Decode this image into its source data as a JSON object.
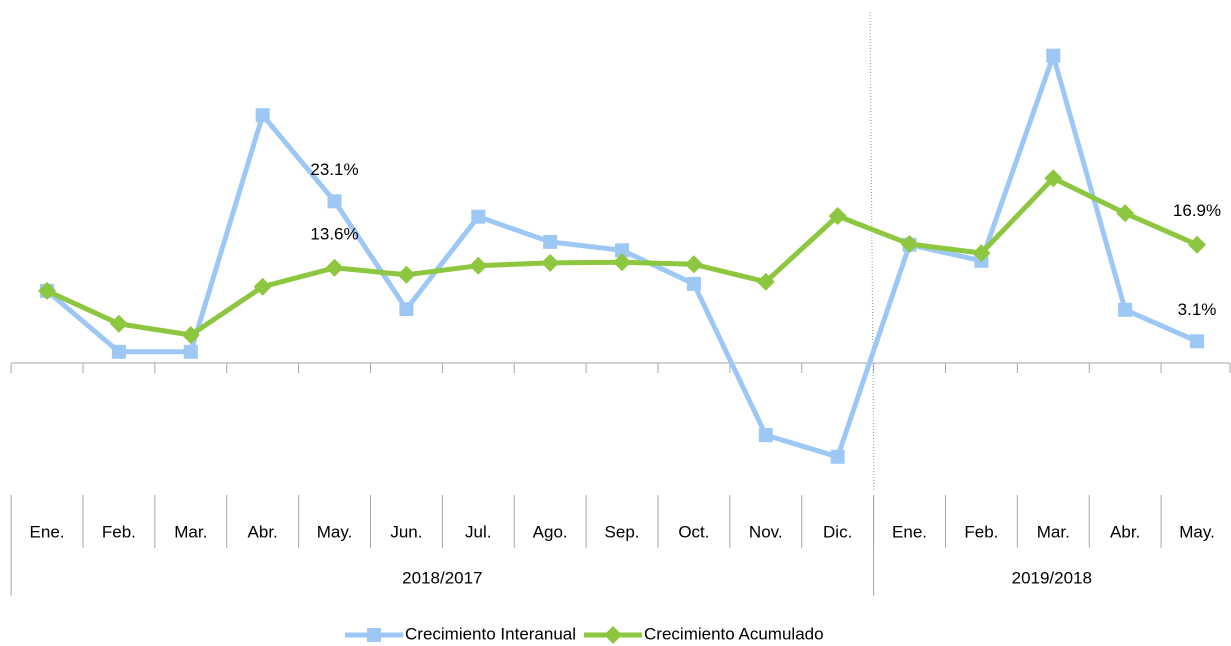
{
  "chart_data": {
    "type": "line",
    "categories": [
      "Ene.",
      "Feb.",
      "Mar.",
      "Abr.",
      "May.",
      "Jun.",
      "Jul.",
      "Ago.",
      "Sep.",
      "Oct.",
      "Nov.",
      "Dic.",
      "Ene.",
      "Feb.",
      "Mar.",
      "Abr.",
      "May."
    ],
    "groups": [
      {
        "label": "2018/2017",
        "span": 12
      },
      {
        "label": "2019/2018",
        "span": 5
      }
    ],
    "series": [
      {
        "name": "Crecimiento Interanual",
        "color": "#9dc8f5",
        "marker": "square",
        "values": [
          10.3,
          1.6,
          1.6,
          35.4,
          23.1,
          7.7,
          20.9,
          17.3,
          16.1,
          11.3,
          -10.3,
          -13.4,
          16.9,
          14.6,
          43.9,
          7.6,
          3.1
        ],
        "value_labels": [
          null,
          null,
          null,
          null,
          "23.1%",
          null,
          null,
          null,
          null,
          null,
          null,
          null,
          null,
          null,
          null,
          null,
          "3.1%"
        ]
      },
      {
        "name": "Crecimiento Acumulado",
        "color": "#8dc63f",
        "marker": "diamond",
        "values": [
          10.3,
          5.6,
          4.0,
          10.9,
          13.6,
          12.6,
          13.9,
          14.3,
          14.4,
          14.1,
          11.6,
          21.0,
          17.0,
          15.7,
          26.4,
          21.4,
          16.9
        ],
        "value_labels": [
          null,
          null,
          null,
          null,
          "13.6%",
          null,
          null,
          null,
          null,
          null,
          null,
          null,
          null,
          null,
          null,
          null,
          "16.9%"
        ]
      }
    ],
    "ylim": [
      -20,
      50
    ]
  }
}
